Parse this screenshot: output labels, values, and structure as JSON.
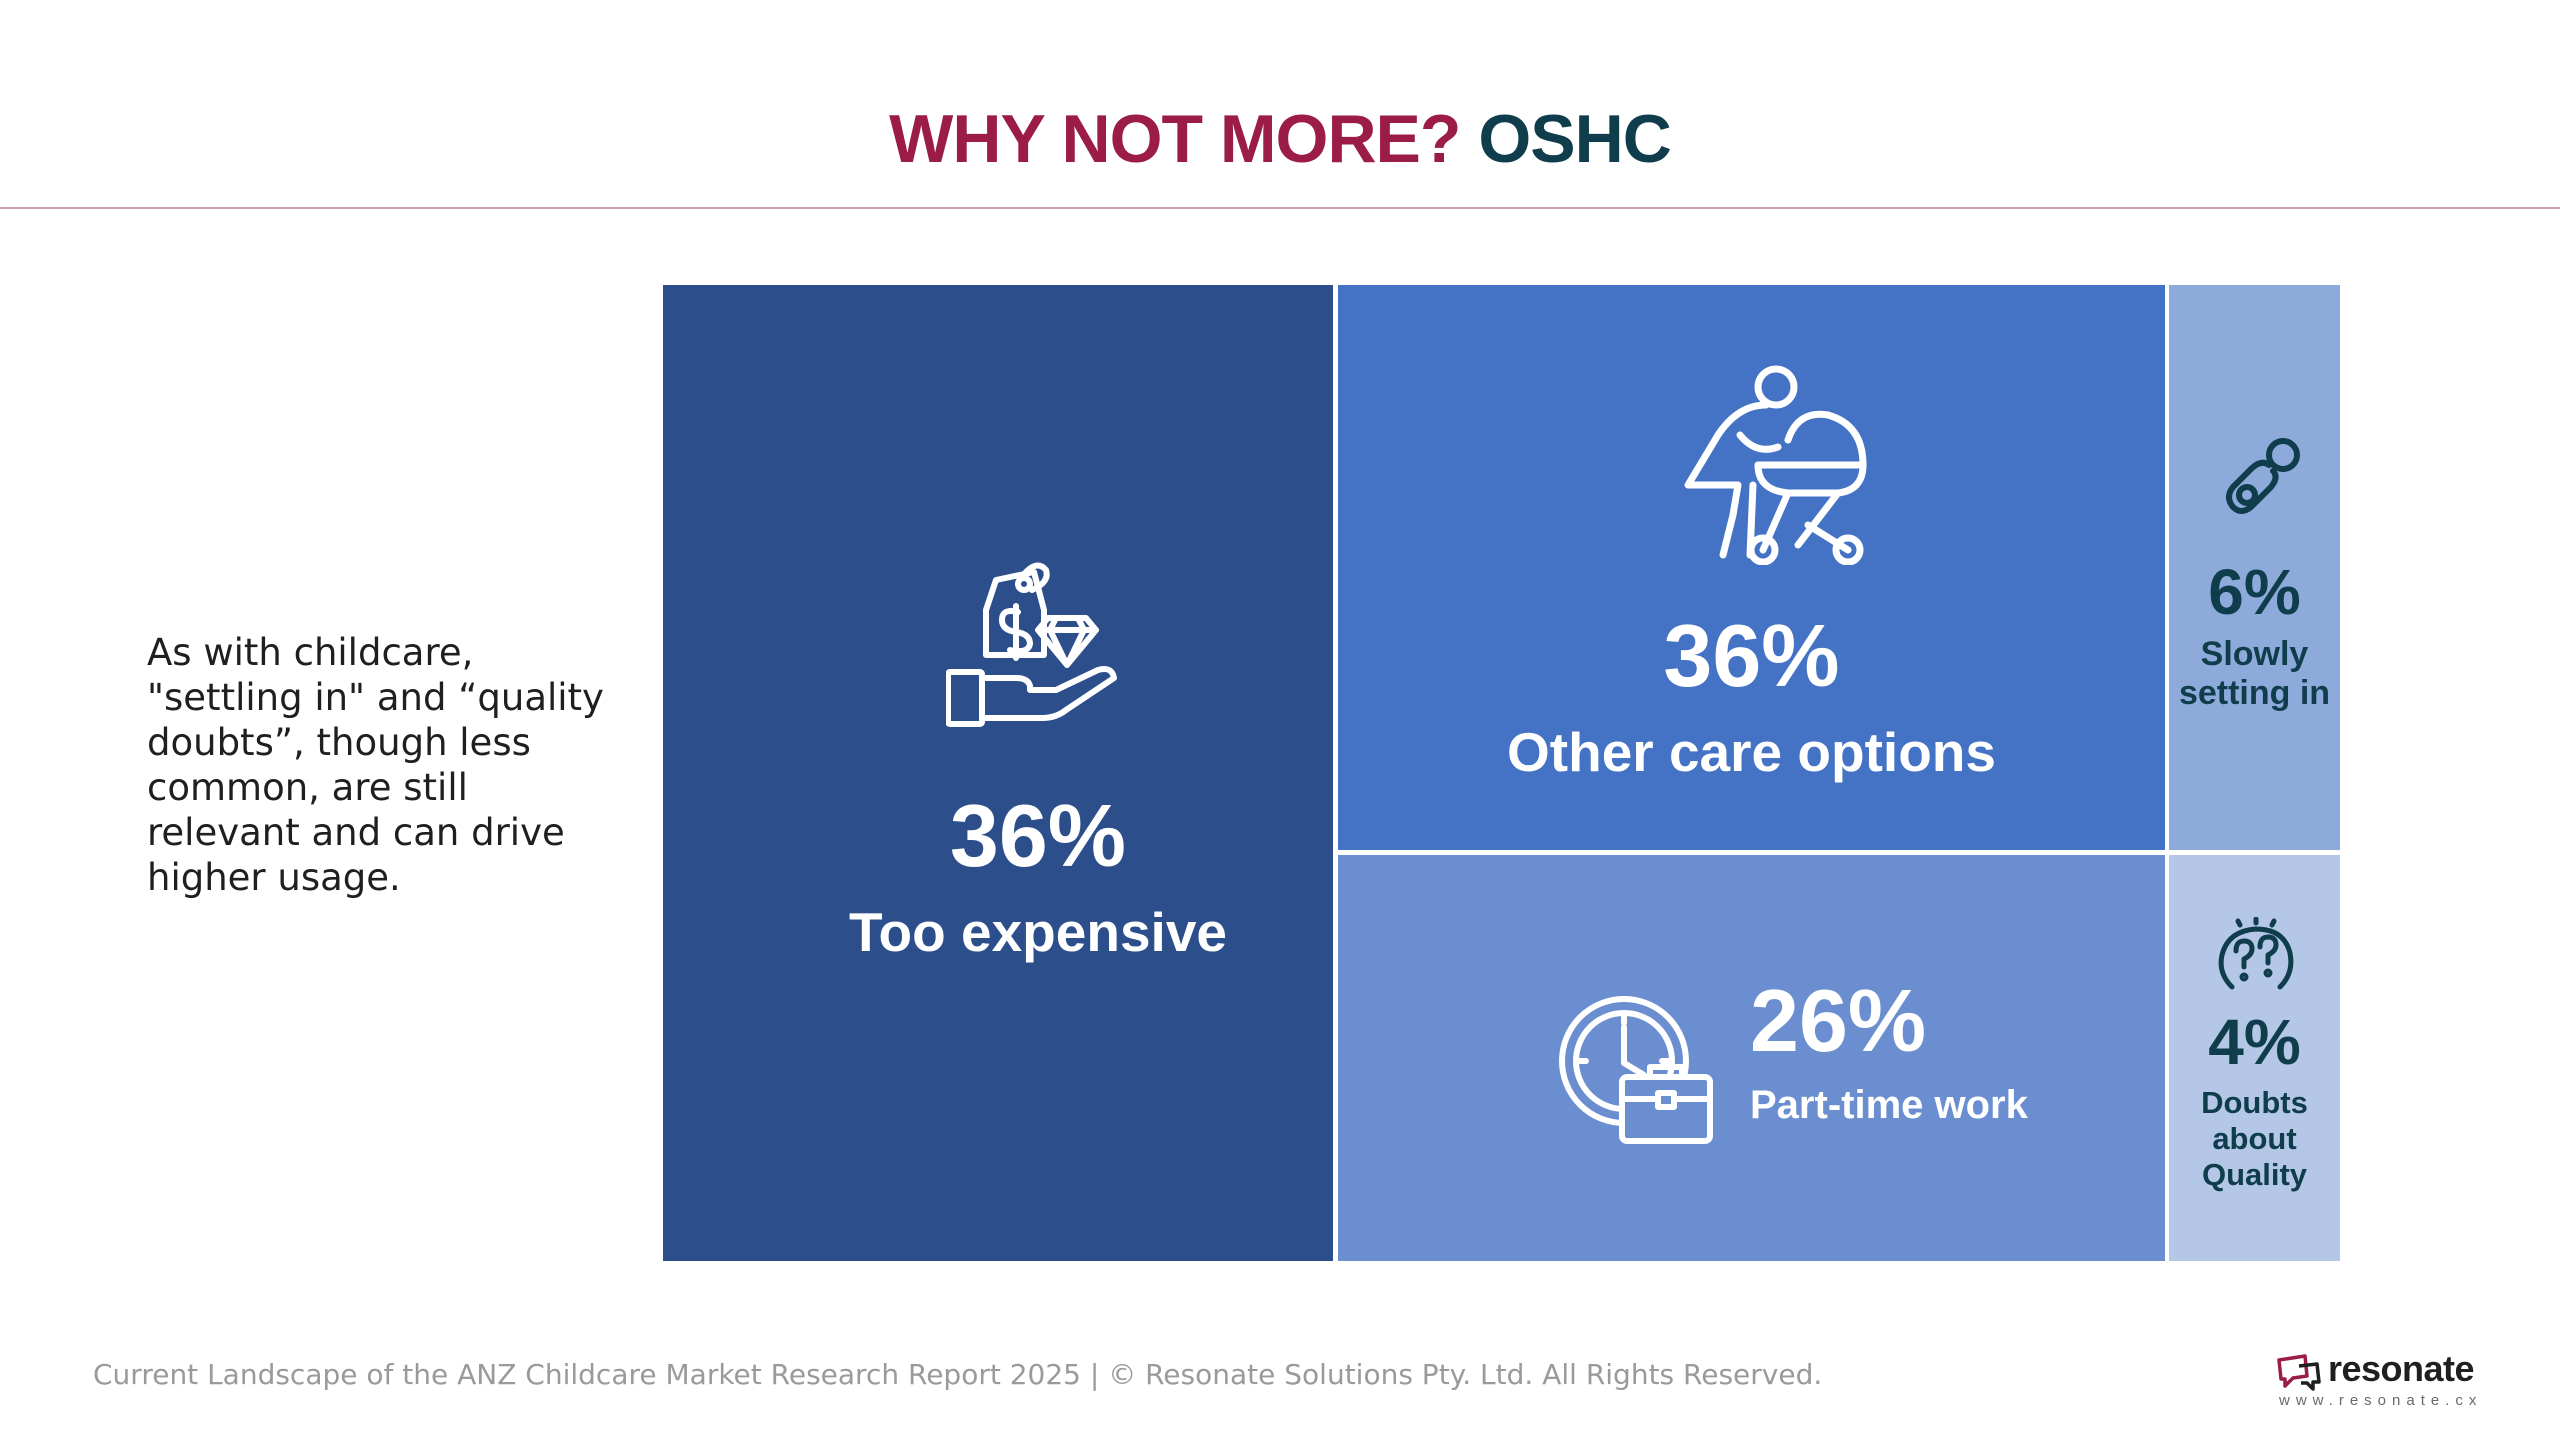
{
  "slide": {
    "title_part1": "WHY NOT MORE?",
    "title_part2": "OSHC",
    "side_text": "As with childcare, \"settling in\" and “quality doubts”, though less common, are still relevant and can drive higher usage.",
    "footer": "Current Landscape of the ANZ Childcare Market Research Report 2025 | © Resonate Solutions Pty. Ltd. All Rights Reserved.",
    "brand_name": "resonate",
    "brand_url": "www.resonate.cx"
  },
  "colors": {
    "title_accent": "#9b1c47",
    "title_dark": "#0f3d4c",
    "too_expensive": "#2c4f8c",
    "other_care": "#4472c4",
    "part_time": "#6a8ecf",
    "slowly": "#8eaadb",
    "doubts": "#b4c7e7"
  },
  "chart_data": {
    "type": "treemap",
    "title": "",
    "items": [
      {
        "label": "Too expensive",
        "value": 36,
        "value_label": "36%",
        "icon": "price-tag-diamond-hand-icon"
      },
      {
        "label": "Other care options",
        "value": 36,
        "value_label": "36%",
        "icon": "mother-stroller-icon"
      },
      {
        "label": "Part-time work",
        "value": 26,
        "value_label": "26%",
        "icon": "clock-briefcase-icon"
      },
      {
        "label": "Slowly setting in",
        "value": 6,
        "value_label": "6%",
        "icon": "pacifier-icon"
      },
      {
        "label": "Doubts about Quality",
        "value": 4,
        "value_label": "4%",
        "icon": "question-marks-head-icon"
      }
    ]
  }
}
